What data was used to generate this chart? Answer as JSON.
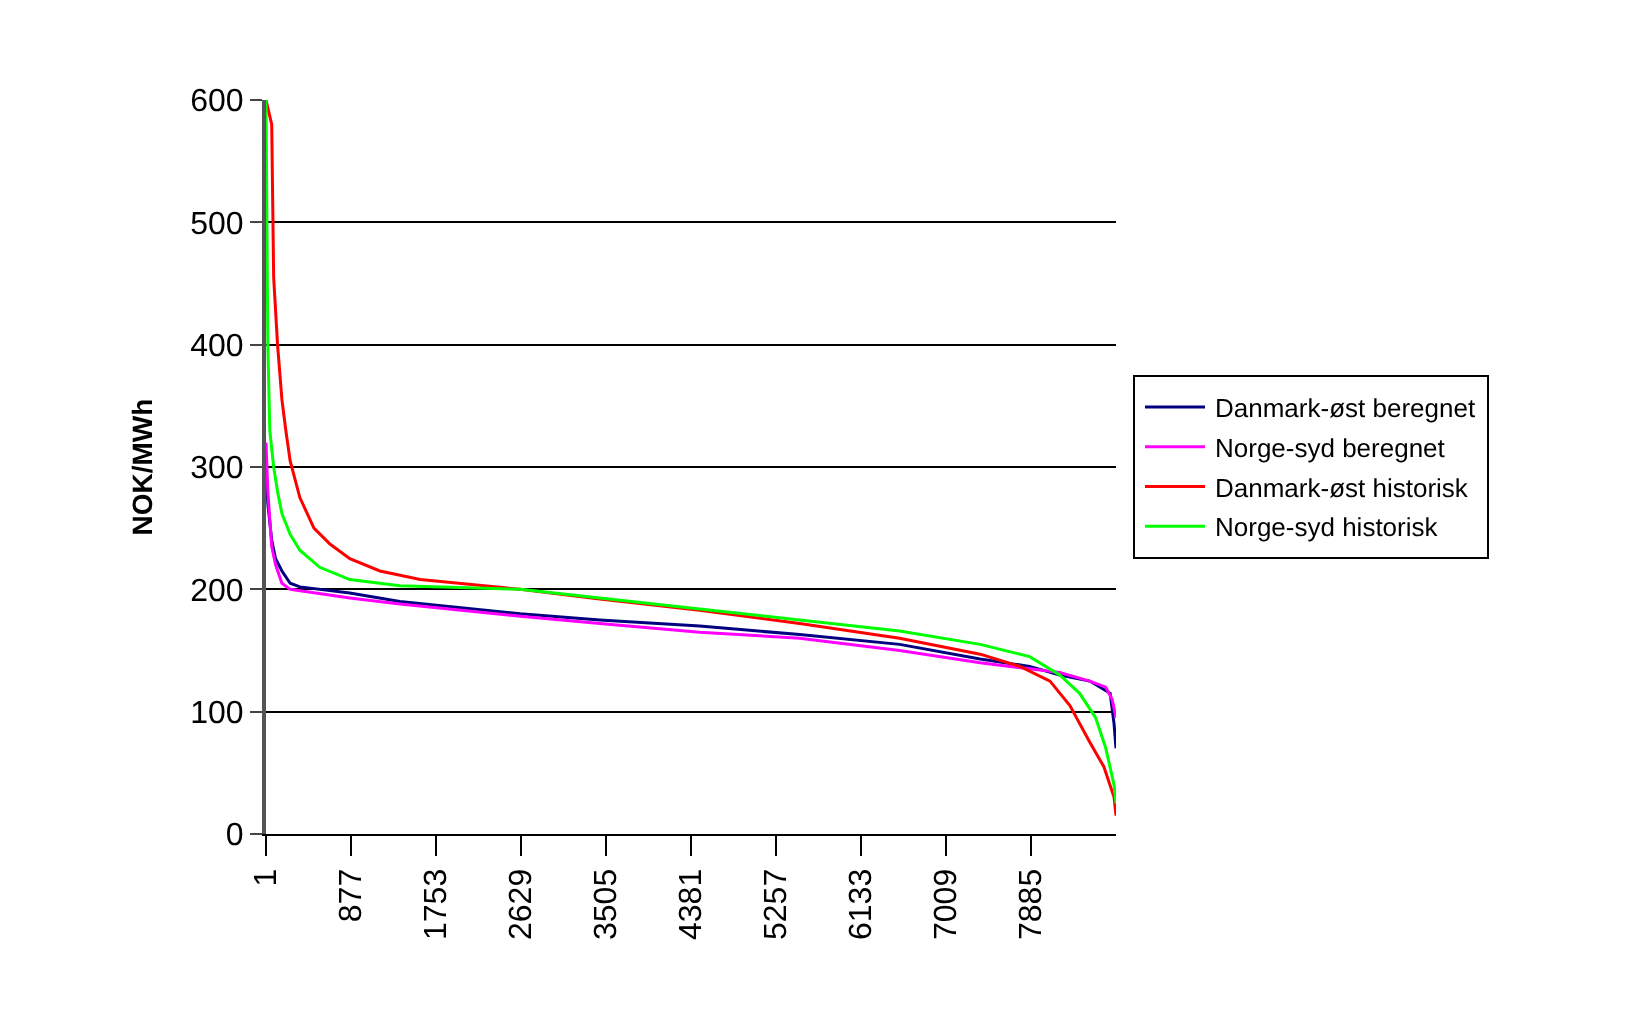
{
  "chart_data": {
    "type": "line",
    "ylabel": "NOK/MWh",
    "xlim": [
      1,
      8760
    ],
    "xticks": [
      1,
      877,
      1753,
      2629,
      3505,
      4381,
      5257,
      6133,
      7009,
      7885
    ],
    "ylim": [
      0,
      600
    ],
    "yticks": [
      0,
      100,
      200,
      300,
      400,
      500,
      600
    ],
    "grid": "y",
    "legend": "right",
    "marker": "none",
    "line_style": "solid",
    "series": [
      {
        "name": "Danmark-øst beregnet",
        "color": "#000080",
        "x": [
          1,
          20,
          60,
          100,
          165,
          250,
          350,
          865,
          1380,
          2620,
          3440,
          4470,
          5500,
          6530,
          7360,
          7870,
          8180,
          8490,
          8700,
          8740,
          8760
        ],
        "values": [
          300,
          270,
          240,
          225,
          215,
          205,
          202,
          197,
          190,
          180,
          175,
          170,
          163,
          155,
          143,
          137,
          130,
          125,
          115,
          90,
          70
        ]
      },
      {
        "name": "Norge-syd beregnet",
        "color": "#ff00ff",
        "x": [
          1,
          20,
          60,
          100,
          165,
          250,
          865,
          1380,
          2620,
          3440,
          4470,
          5500,
          6530,
          7360,
          7870,
          8180,
          8490,
          8655,
          8720,
          8760
        ],
        "values": [
          320,
          280,
          235,
          220,
          205,
          200,
          193,
          188,
          178,
          172,
          165,
          160,
          150,
          140,
          135,
          132,
          125,
          120,
          110,
          95
        ]
      },
      {
        "name": "Danmark-øst historisk",
        "color": "#ff0000",
        "x": [
          1,
          60,
          80,
          120,
          165,
          205,
          250,
          350,
          495,
          660,
          865,
          1175,
          1590,
          2620,
          3440,
          4470,
          5500,
          6530,
          7360,
          7770,
          8080,
          8285,
          8490,
          8635,
          8740,
          8760
        ],
        "values": [
          600,
          580,
          455,
          400,
          355,
          330,
          305,
          275,
          250,
          237,
          225,
          215,
          208,
          200,
          192,
          183,
          172,
          160,
          147,
          137,
          125,
          105,
          75,
          55,
          30,
          15
        ]
      },
      {
        "name": "Norge-syd historisk",
        "color": "#00ff00",
        "x": [
          1,
          20,
          40,
          80,
          120,
          165,
          250,
          350,
          555,
          865,
          1380,
          2620,
          3440,
          4470,
          5500,
          6530,
          7360,
          7870,
          8180,
          8385,
          8550,
          8655,
          8740,
          8760
        ],
        "values": [
          600,
          400,
          330,
          300,
          280,
          262,
          245,
          232,
          218,
          208,
          203,
          200,
          193,
          184,
          175,
          166,
          155,
          145,
          130,
          115,
          95,
          70,
          40,
          25
        ]
      }
    ]
  }
}
